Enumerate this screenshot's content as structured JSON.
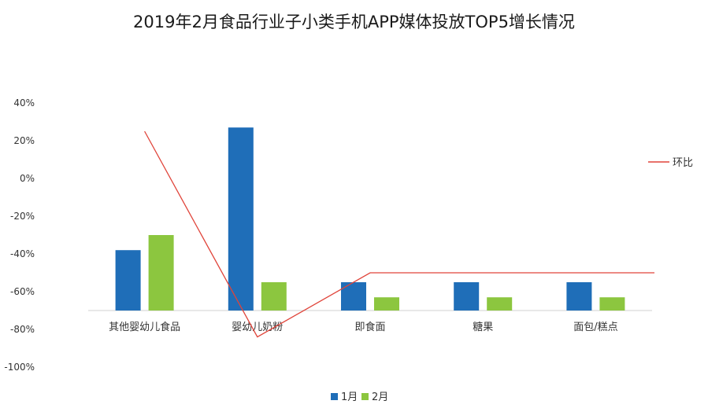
{
  "chart_data": {
    "type": "bar",
    "title": "2019年2月食品行业子小类手机APP媒体投放TOP5增长情况",
    "categories": [
      "其他婴幼儿食品",
      "婴幼儿奶粉",
      "即食面",
      "糖果",
      "面包/糕点"
    ],
    "series": [
      {
        "name": "1月",
        "type": "bar",
        "color": "#1f6eb8",
        "values": [
          -38,
          27,
          -55,
          -55,
          -55
        ]
      },
      {
        "name": "2月",
        "type": "bar",
        "color": "#8cc63f",
        "values": [
          -30,
          -55,
          -63,
          -63,
          -63
        ]
      },
      {
        "name": "环比",
        "type": "line",
        "color": "#e0443a",
        "values": [
          25,
          -84,
          -50,
          -50,
          -50
        ]
      }
    ],
    "yticks": [
      "40%",
      "20%",
      "0%",
      "-20%",
      "-40%",
      "-60%",
      "-80%",
      "-100%"
    ],
    "ylim": [
      -100,
      40
    ],
    "bar_baseline": -70,
    "legend": {
      "bars_position": "bottom",
      "line_position": "right"
    }
  }
}
